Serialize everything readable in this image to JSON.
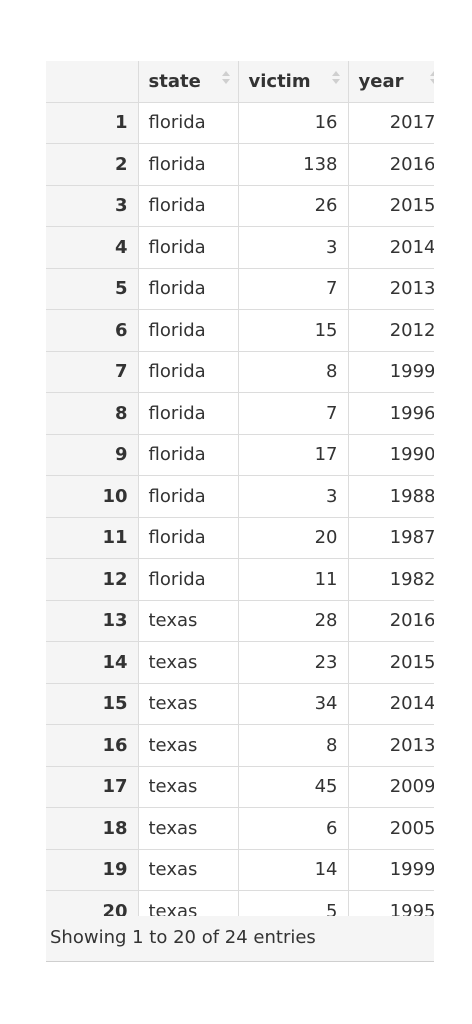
{
  "table": {
    "columns": [
      "",
      "state",
      "victim",
      "year"
    ],
    "rows": [
      {
        "index": "1",
        "state": "florida",
        "victim": "16",
        "year": "2017"
      },
      {
        "index": "2",
        "state": "florida",
        "victim": "138",
        "year": "2016"
      },
      {
        "index": "3",
        "state": "florida",
        "victim": "26",
        "year": "2015"
      },
      {
        "index": "4",
        "state": "florida",
        "victim": "3",
        "year": "2014"
      },
      {
        "index": "5",
        "state": "florida",
        "victim": "7",
        "year": "2013"
      },
      {
        "index": "6",
        "state": "florida",
        "victim": "15",
        "year": "2012"
      },
      {
        "index": "7",
        "state": "florida",
        "victim": "8",
        "year": "1999"
      },
      {
        "index": "8",
        "state": "florida",
        "victim": "7",
        "year": "1996"
      },
      {
        "index": "9",
        "state": "florida",
        "victim": "17",
        "year": "1990"
      },
      {
        "index": "10",
        "state": "florida",
        "victim": "3",
        "year": "1988"
      },
      {
        "index": "11",
        "state": "florida",
        "victim": "20",
        "year": "1987"
      },
      {
        "index": "12",
        "state": "florida",
        "victim": "11",
        "year": "1982"
      },
      {
        "index": "13",
        "state": "texas",
        "victim": "28",
        "year": "2016"
      },
      {
        "index": "14",
        "state": "texas",
        "victim": "23",
        "year": "2015"
      },
      {
        "index": "15",
        "state": "texas",
        "victim": "34",
        "year": "2014"
      },
      {
        "index": "16",
        "state": "texas",
        "victim": "8",
        "year": "2013"
      },
      {
        "index": "17",
        "state": "texas",
        "victim": "45",
        "year": "2009"
      },
      {
        "index": "18",
        "state": "texas",
        "victim": "6",
        "year": "2005"
      },
      {
        "index": "19",
        "state": "texas",
        "victim": "14",
        "year": "1999"
      },
      {
        "index": "20",
        "state": "texas",
        "victim": "5",
        "year": "1995"
      }
    ]
  },
  "footer": {
    "info": "Showing 1 to 20 of 24 entries"
  },
  "icons": {
    "sort": "sort-both-icon"
  }
}
